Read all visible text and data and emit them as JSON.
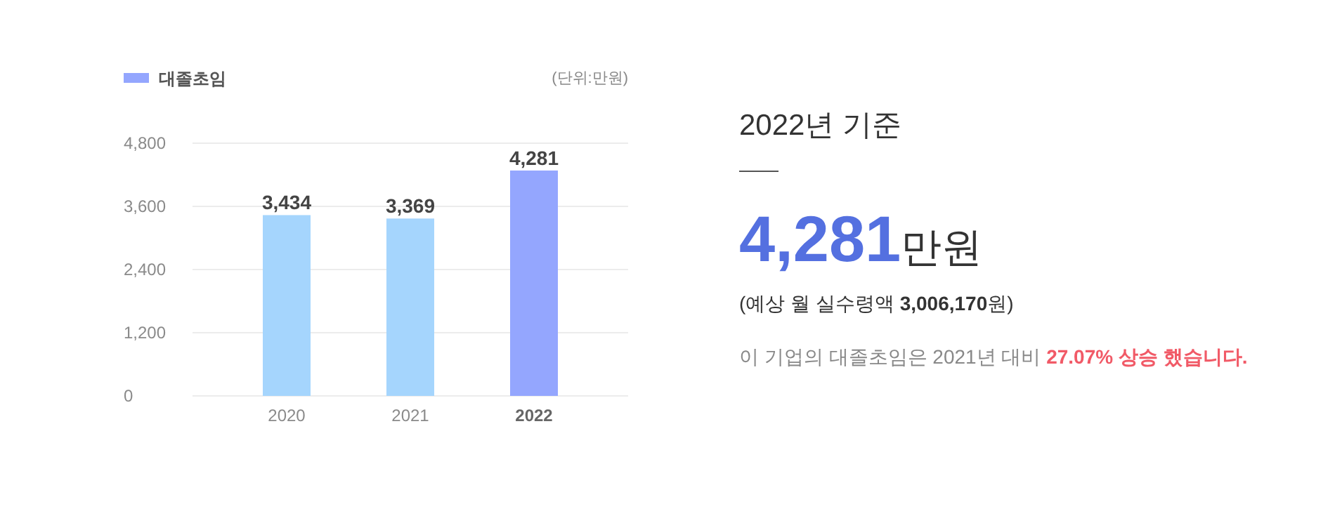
{
  "chart_data": [
    {
      "type": "bar",
      "categories": [
        "2020",
        "2021",
        "2022"
      ],
      "series": [
        {
          "name": "대졸초임",
          "color": "#94a6fe",
          "colors": [
            "#a5d5fd",
            "#a5d5fd",
            "#94a6fe"
          ],
          "values": [
            3434,
            3369,
            4281
          ],
          "value_labels": [
            "3,434",
            "3,369",
            "4,281"
          ]
        }
      ],
      "ylim": [
        0,
        4800
      ],
      "yticks": [
        0,
        {
          "value": 1200,
          "label": "1,200"
        },
        {
          "value": 2400,
          "label": "2,400"
        },
        {
          "value": 3600,
          "label": "3,600"
        },
        {
          "value": 4800,
          "label": "4,800"
        }
      ],
      "grid": "y",
      "legend": "top left",
      "annotations": [
        "(단위:만원)"
      ]
    },
    {
      "type": "other",
      "title": "2022년 기준",
      "annotations": [
        "4,281만원",
        "(예상 월 실수령액 3,006,170원)",
        "이 기업의 대졸초임은 2021년 대비 27.07% 상승 했습니다."
      ]
    }
  ]
}
